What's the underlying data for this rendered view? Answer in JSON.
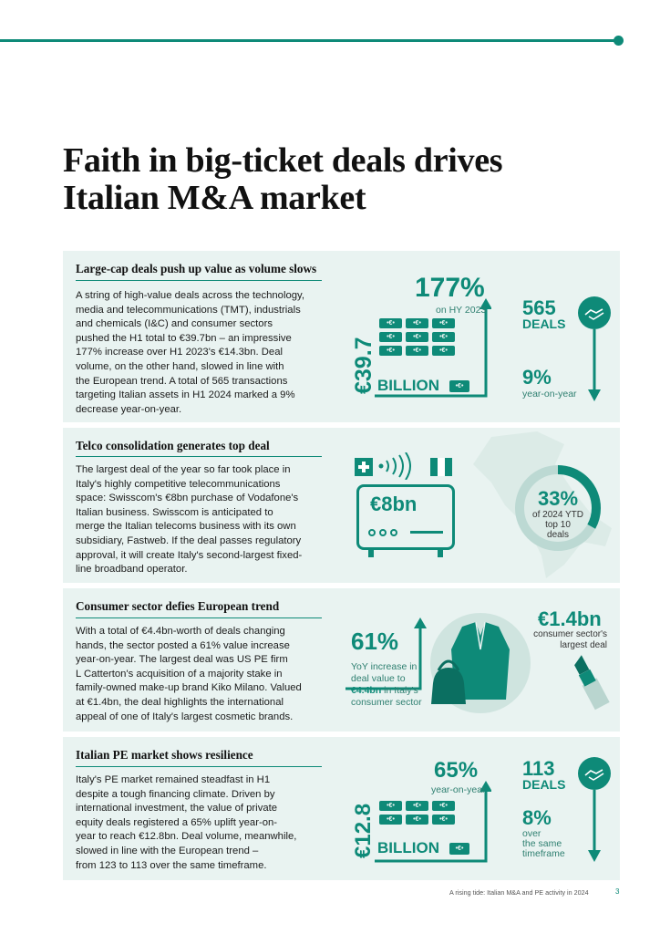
{
  "title": [
    "Faith in big-ticket deals drives",
    "Italian M&A market"
  ],
  "sections": [
    {
      "heading": "Large-cap deals push up value as volume slows",
      "text": [
        "A string of high-value deals across the technology,",
        "media and telecommunications (TMT), industrials",
        "and chemicals (I&C) and consumer sectors",
        "pushed the H1 total to €39.7bn – an impressive",
        "177% increase over H1 2023's €14.3bn. Deal",
        "volume, on the other hand, slowed in line with",
        "the European trend. A total of 565 transactions",
        "targeting Italian assets in H1 2024 marked a 9%",
        "decrease year-on-year."
      ],
      "value_vertical": "€39.7",
      "value_unit": "BILLION",
      "pct": "177%",
      "pct_sub": "on HY 2023",
      "deals": "565",
      "deals_label": "DEALS",
      "vol_pct": "9%",
      "vol_sub": "year-on-year"
    },
    {
      "heading": "Telco consolidation generates top deal",
      "text": [
        "The largest deal of the year so far took place in",
        "Italy's highly competitive telecommunications",
        "space: Swisscom's €8bn purchase of Vodafone's",
        "Italian business. Swisscom is anticipated to",
        "merge the Italian telecoms business with its own",
        "subsidiary, Fastweb. If the deal passes regulatory",
        "approval, it will create Italy's second-largest fixed-",
        "line broadband operator."
      ],
      "deal_value": "€8bn",
      "share_pct": "33%",
      "share_sub": [
        "of 2024 YTD",
        "top 10",
        "deals"
      ],
      "share_fraction": 0.33
    },
    {
      "heading": "Consumer sector defies European trend",
      "text": [
        "With a total of €4.4bn-worth of deals changing",
        "hands, the sector posted a 61% value increase",
        "year-on-year. The largest deal was US PE firm",
        "L Catterton's acquisition of a majority stake in",
        "family-owned make-up brand Kiko Milano. Valued",
        "at €1.4bn, the deal highlights the international",
        "appeal of one of Italy's largest cosmetic brands."
      ],
      "pct": "61%",
      "pct_sub_1": "YoY increase in",
      "pct_sub_2": "deal value to",
      "pct_sub_bold": "€4.4bn",
      "pct_sub_3": " in Italy's",
      "pct_sub_4": "consumer sector",
      "largest": "€1.4bn",
      "largest_sub": [
        "consumer sector's",
        "largest deal"
      ]
    },
    {
      "heading": "Italian PE market shows resilience",
      "text": [
        "Italy's PE market remained steadfast in H1",
        "despite a tough financing climate. Driven by",
        "international investment, the value of private",
        "equity deals registered a 65% uplift year-on-",
        "year to reach €12.8bn. Deal volume, meanwhile,",
        "slowed in line with the European trend –",
        "from 123 to 113 over the same timeframe."
      ],
      "value_vertical": "€12.8",
      "value_unit": "BILLION",
      "pct": "65%",
      "pct_sub": "year-on-year",
      "deals": "113",
      "deals_label": "DEALS",
      "vol_pct": "8%",
      "vol_sub": [
        "over",
        "the same",
        "timeframe"
      ]
    }
  ],
  "bill_glyph": "•€•",
  "footer": "A rising tide: Italian M&A and PE activity in 2024",
  "page_number": "3",
  "colors": {
    "accent": "#0e8a78",
    "panel": "#e9f3f1",
    "light": "#bcd9d3"
  }
}
